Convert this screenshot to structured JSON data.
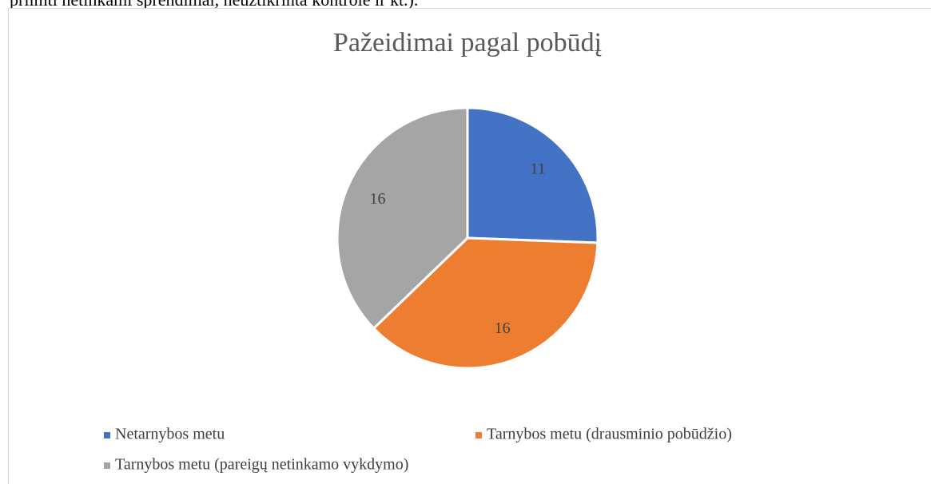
{
  "text_above": "priimti netinkami sprendimai, neužtikrinta kontrolė ir kt.).",
  "chart_data": {
    "type": "pie",
    "title": "Pažeidimai pagal pobūdį",
    "categories": [
      "Netarnybos metu",
      "Tarnybos metu (drausminio pobūdžio)",
      "Tarnybos metu (pareigų netinkamo vykdymo)"
    ],
    "values": [
      11,
      16,
      16
    ],
    "colors": [
      "#4472c4",
      "#ed7d31",
      "#a5a5a5"
    ],
    "legend": "bottom"
  }
}
